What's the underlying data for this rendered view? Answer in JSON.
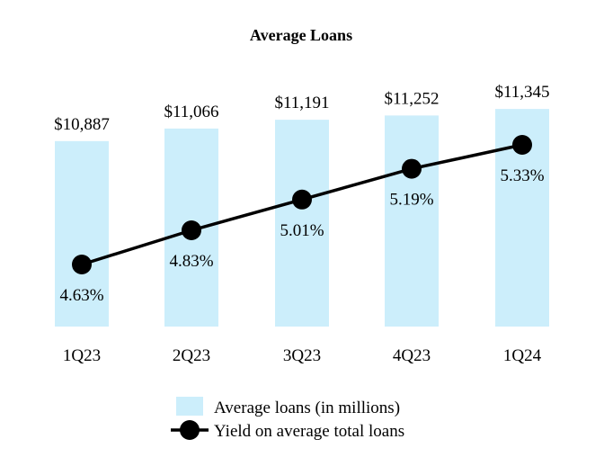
{
  "chart_data": {
    "type": "bar",
    "title": "Average Loans",
    "categories": [
      "1Q23",
      "2Q23",
      "3Q23",
      "4Q23",
      "1Q24"
    ],
    "series": [
      {
        "name": "Average loans (in millions)",
        "type": "bar",
        "values": [
          10887,
          11066,
          11191,
          11252,
          11345
        ],
        "labels": [
          "$10,887",
          "$11,066",
          "$11,191",
          "$11,252",
          "$11,345"
        ],
        "color": "#cceefb"
      },
      {
        "name": "Yield on average total loans",
        "type": "line",
        "values": [
          4.63,
          4.83,
          5.01,
          5.19,
          5.33
        ],
        "labels": [
          "4.63%",
          "4.83%",
          "5.01%",
          "5.19%",
          "5.33%"
        ],
        "color": "#000000"
      }
    ],
    "legend_position": "bottom-center",
    "grid": false
  }
}
